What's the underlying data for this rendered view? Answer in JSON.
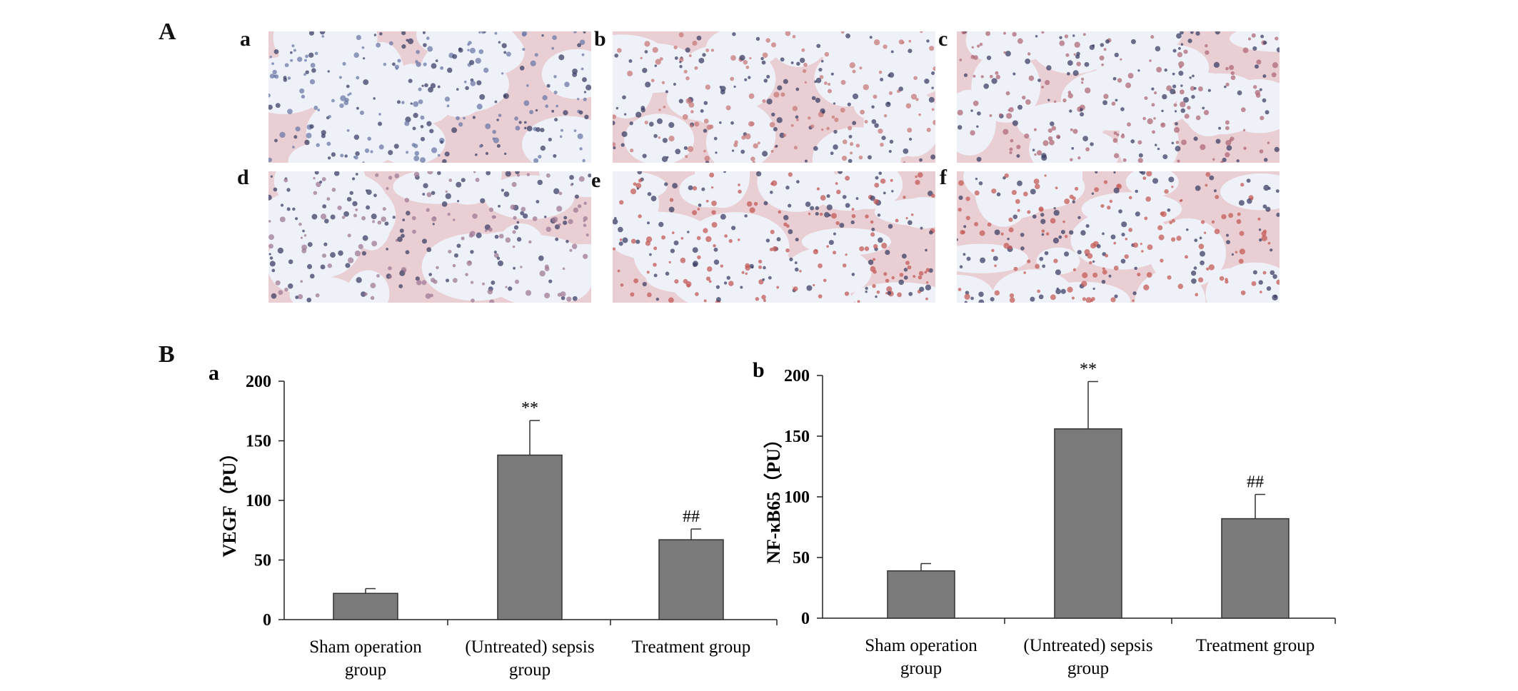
{
  "figure": {
    "panel_a_label": "A",
    "panel_b_label": "B",
    "micrographs": [
      {
        "label": "a",
        "tint": "#6c79a8"
      },
      {
        "label": "b",
        "tint": "#c87a7a"
      },
      {
        "label": "c",
        "tint": "#b06a78"
      },
      {
        "label": "d",
        "tint": "#a07a96"
      },
      {
        "label": "e",
        "tint": "#c45a58"
      },
      {
        "label": "f",
        "tint": "#c65c58"
      }
    ]
  },
  "chart_data": [
    {
      "type": "bar",
      "panel_label": "a",
      "categories": [
        [
          "Sham operation",
          "group"
        ],
        [
          "(Untreated) sepsis",
          "group"
        ],
        [
          "Treatment group"
        ]
      ],
      "values": [
        22,
        138,
        67
      ],
      "errors": [
        4,
        29,
        9
      ],
      "annotations": [
        "",
        "**",
        "##"
      ],
      "ylabel": "VEGF（PU）",
      "ylim": [
        0,
        200
      ],
      "yticks": [
        0,
        50,
        100,
        150,
        200
      ],
      "bar_color": "#7a7a7a"
    },
    {
      "type": "bar",
      "panel_label": "b",
      "categories": [
        [
          "Sham operation",
          "group"
        ],
        [
          "(Untreated) sepsis",
          "group"
        ],
        [
          "Treatment group"
        ]
      ],
      "values": [
        39,
        156,
        82
      ],
      "errors": [
        6,
        39,
        20
      ],
      "annotations": [
        "",
        "**",
        "##"
      ],
      "ylabel": "NF-κB65（PU）",
      "ylim": [
        0,
        200
      ],
      "yticks": [
        0,
        50,
        100,
        150,
        200
      ],
      "bar_color": "#7a7a7a"
    }
  ]
}
